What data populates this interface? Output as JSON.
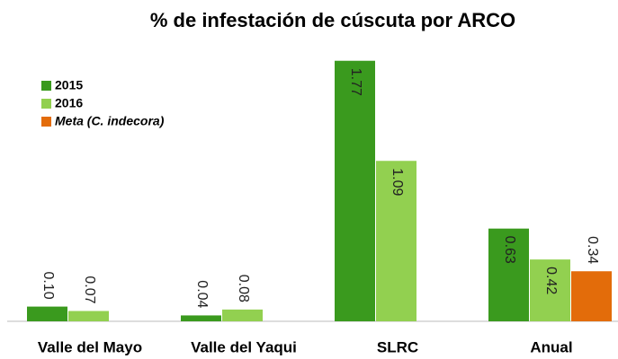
{
  "chart_data": {
    "type": "bar",
    "title": "% de infestación de cúscuta por ARCO",
    "categories": [
      "Valle del Mayo",
      "Valle del Yaqui",
      "SLRC",
      "Anual"
    ],
    "series": [
      {
        "name": "2015",
        "color": "#3a9a1e",
        "values": [
          0.1,
          0.04,
          1.77,
          0.63
        ],
        "value_labels": [
          "0.10",
          "0.04",
          "1.77",
          "0.63"
        ]
      },
      {
        "name": "2016",
        "color": "#92d050",
        "values": [
          0.07,
          0.08,
          1.09,
          0.42
        ],
        "value_labels": [
          "0.07",
          "0.08",
          "1.09",
          "0.42"
        ]
      },
      {
        "name": "Meta (C. indecora)",
        "color": "#e36c0a",
        "values": [
          null,
          null,
          null,
          0.34
        ],
        "value_labels": [
          null,
          null,
          null,
          "0.34"
        ]
      }
    ],
    "ylim": [
      0,
      2
    ],
    "legend": "upper left"
  }
}
